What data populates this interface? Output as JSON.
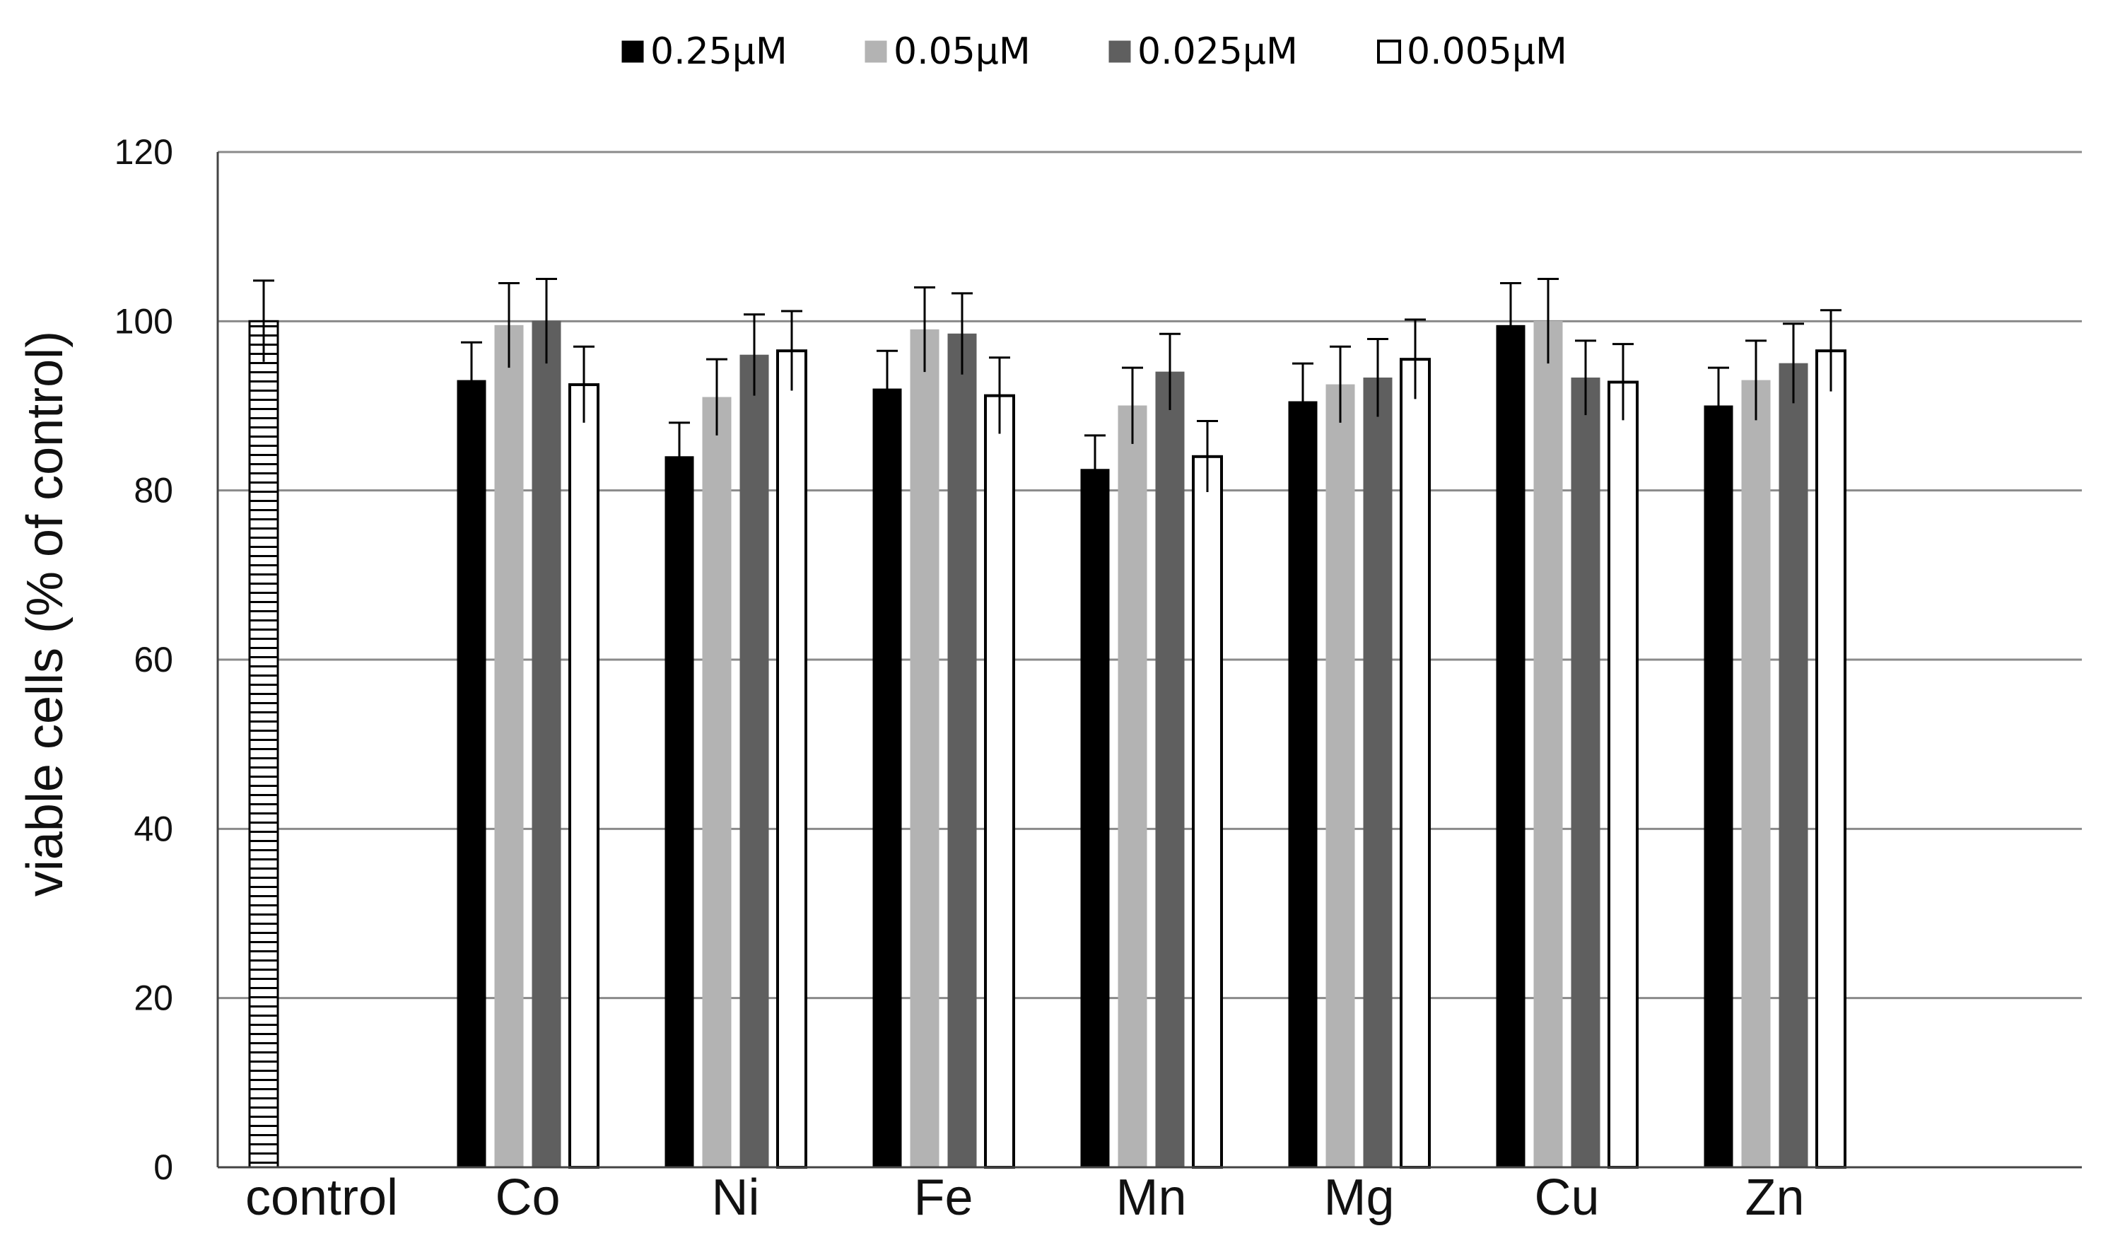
{
  "chart_data": {
    "type": "bar",
    "title": "",
    "xlabel": "",
    "ylabel": "viable cells (% of control)",
    "ylim": [
      0,
      120
    ],
    "yticks": [
      0,
      20,
      40,
      60,
      80,
      100,
      120
    ],
    "grid": true,
    "legend_position": "top-center",
    "control": {
      "label": "control",
      "value": 100,
      "error": 4.8,
      "fill": "pattern-horizontal-lines"
    },
    "categories": [
      "Co",
      "Ni",
      "Fe",
      "Mn",
      "Mg",
      "Cu",
      "Zn"
    ],
    "series": [
      {
        "name": "0.25µM",
        "color": "#000000",
        "values": [
          93,
          84,
          92,
          82.5,
          90.5,
          99.5,
          90
        ],
        "errors": [
          4.5,
          4,
          4.5,
          4,
          4.5,
          5,
          4.5
        ]
      },
      {
        "name": "0.05µM",
        "color": "#b3b3b3",
        "values": [
          99.5,
          91,
          99,
          90,
          92.5,
          100,
          93
        ],
        "errors": [
          5,
          4.5,
          5,
          4.5,
          4.5,
          5,
          4.7
        ]
      },
      {
        "name": "0.025µM",
        "color": "#5f5f5f",
        "values": [
          100,
          96,
          98.5,
          94,
          93.3,
          93.3,
          95
        ],
        "errors": [
          5,
          4.8,
          4.8,
          4.5,
          4.6,
          4.4,
          4.7
        ]
      },
      {
        "name": "0.005µM",
        "color": "#ffffff",
        "values": [
          92.5,
          96.5,
          91.2,
          84,
          95.5,
          92.8,
          96.5
        ],
        "errors": [
          4.5,
          4.7,
          4.5,
          4.2,
          4.7,
          4.5,
          4.8
        ]
      }
    ]
  }
}
